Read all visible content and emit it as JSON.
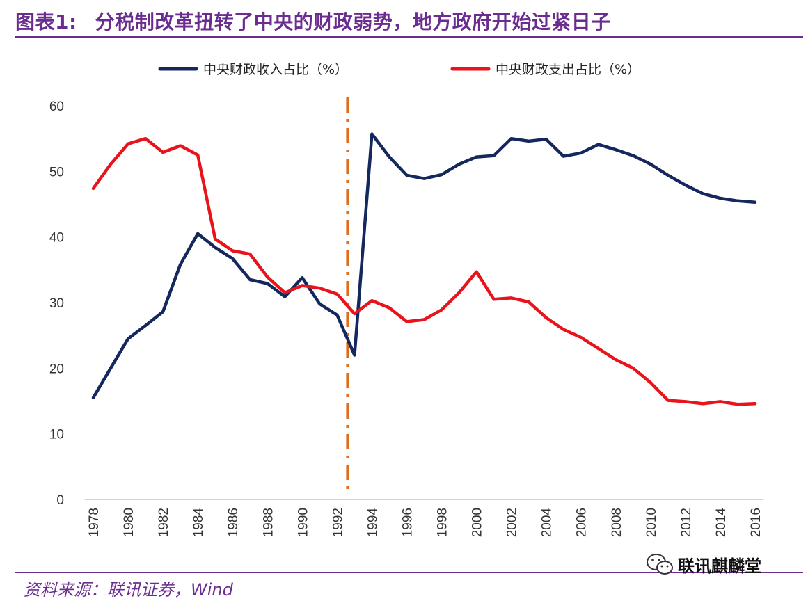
{
  "header": {
    "number": "图表1:",
    "title": "分税制改革扭转了中央的财政弱势，地方政府开始过紧日子"
  },
  "source": "资料来源：联讯证券，Wind",
  "watermark": "联讯麒麟堂",
  "colors": {
    "brand": "#6b2c8f",
    "revenue": "#14285e",
    "expenditure": "#e8131b",
    "marker": "#e06c1a"
  },
  "chart_data": {
    "type": "line",
    "x": [
      1978,
      1979,
      1980,
      1981,
      1982,
      1983,
      1984,
      1985,
      1986,
      1987,
      1988,
      1989,
      1990,
      1991,
      1992,
      1993,
      1994,
      1995,
      1996,
      1997,
      1998,
      1999,
      2000,
      2001,
      2002,
      2003,
      2004,
      2005,
      2006,
      2007,
      2008,
      2009,
      2010,
      2011,
      2012,
      2013,
      2014,
      2015,
      2016
    ],
    "x_tick_labels": [
      "1978",
      "1980",
      "1982",
      "1984",
      "1986",
      "1988",
      "1990",
      "1992",
      "1994",
      "1996",
      "1998",
      "2000",
      "2002",
      "2004",
      "2006",
      "2008",
      "2010",
      "2012",
      "2014",
      "2016"
    ],
    "y_ticks": [
      "0",
      "10",
      "20",
      "30",
      "40",
      "50",
      "60"
    ],
    "ylim": [
      0,
      60
    ],
    "series": [
      {
        "name": "中央财政收入占比（%）",
        "color": "#14285e",
        "values": [
          15.5,
          20.0,
          24.5,
          26.5,
          28.6,
          35.8,
          40.5,
          38.4,
          36.7,
          33.5,
          32.9,
          30.9,
          33.8,
          29.8,
          28.1,
          22.0,
          55.7,
          52.2,
          49.4,
          48.9,
          49.5,
          51.1,
          52.2,
          52.4,
          55.0,
          54.6,
          54.9,
          52.3,
          52.8,
          54.1,
          53.3,
          52.4,
          51.1,
          49.4,
          47.9,
          46.6,
          45.9,
          45.5,
          45.3
        ]
      },
      {
        "name": "中央财政支出占比（%）",
        "color": "#e8131b",
        "values": [
          47.4,
          51.1,
          54.2,
          55.0,
          52.9,
          53.9,
          52.5,
          39.7,
          37.9,
          37.4,
          33.9,
          31.5,
          32.6,
          32.2,
          31.3,
          28.3,
          30.3,
          29.2,
          27.1,
          27.4,
          28.9,
          31.5,
          34.7,
          30.5,
          30.7,
          30.1,
          27.7,
          25.9,
          24.7,
          23.0,
          21.3,
          20.0,
          17.8,
          15.1,
          14.9,
          14.6,
          14.9,
          14.5,
          14.6
        ]
      }
    ],
    "annotation": {
      "type": "vertical-dash-dot",
      "at": 1992.6,
      "color": "#e06c1a",
      "meaning": "分税制改革"
    },
    "legend_position": "top-center"
  }
}
